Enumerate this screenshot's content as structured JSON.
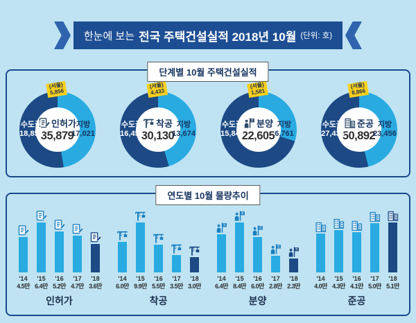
{
  "header": {
    "prefix": "한눈에 보는",
    "title": "전국 주택건설실적 2018년 10월",
    "unit": "(단위: 호)"
  },
  "section1": {
    "title": "단계별 10월 주택건설실적",
    "donuts": [
      {
        "name": "인허가",
        "total": "35,879",
        "capital_label": "수도권",
        "capital_value": "18,858",
        "province_label": "지방",
        "province_value": "17,021",
        "seoul_label": "(서울)",
        "seoul_value": "5,856",
        "province_pct": 47.4,
        "icon": "permit-document-icon"
      },
      {
        "name": "착공",
        "total": "30,130",
        "capital_label": "수도권",
        "capital_value": "16,456",
        "province_label": "지방",
        "province_value": "13,674",
        "seoul_label": "(서울)",
        "seoul_value": "4,433",
        "province_pct": 45.4,
        "icon": "crane-icon"
      },
      {
        "name": "분양",
        "total": "22,605",
        "capital_label": "수도권",
        "capital_value": "15,844",
        "province_label": "지방",
        "province_value": "6,761",
        "seoul_label": "(서울)",
        "seoul_value": "1,581",
        "province_pct": 29.9,
        "icon": "sales-flag-icon"
      },
      {
        "name": "준공",
        "total": "50,892",
        "capital_label": "수도권",
        "capital_value": "27,436",
        "province_label": "지방",
        "province_value": "23,456",
        "seoul_label": "(서울)",
        "seoul_value": "8,866",
        "province_pct": 46.1,
        "icon": "buildings-icon"
      }
    ]
  },
  "section2": {
    "title": "연도별 10월 물량추이",
    "groups": [
      {
        "name": "인허가",
        "icon": "permit-document-icon",
        "bars": [
          {
            "year": "'14",
            "label": "4.5만",
            "v": 4.5
          },
          {
            "year": "'15",
            "label": "6.4만",
            "v": 6.4
          },
          {
            "year": "'16",
            "label": "5.2만",
            "v": 5.2
          },
          {
            "year": "'17",
            "label": "4.7만",
            "v": 4.7
          },
          {
            "year": "'18",
            "label": "3.6만",
            "v": 3.6
          }
        ]
      },
      {
        "name": "착공",
        "icon": "crane-icon",
        "bars": [
          {
            "year": "'14",
            "label": "6.0만",
            "v": 6.0
          },
          {
            "year": "'15",
            "label": "9.9만",
            "v": 9.9
          },
          {
            "year": "'16",
            "label": "5.5만",
            "v": 5.5
          },
          {
            "year": "'17",
            "label": "3.5만",
            "v": 3.5
          },
          {
            "year": "'18",
            "label": "3.0만",
            "v": 3.0
          }
        ]
      },
      {
        "name": "분양",
        "icon": "sales-flag-icon",
        "bars": [
          {
            "year": "'14",
            "label": "6.4만",
            "v": 6.4
          },
          {
            "year": "'15",
            "label": "8.4만",
            "v": 8.4
          },
          {
            "year": "'16",
            "label": "6.0만",
            "v": 6.0
          },
          {
            "year": "'17",
            "label": "2.8만",
            "v": 2.8
          },
          {
            "year": "'18",
            "label": "2.3만",
            "v": 2.3
          }
        ]
      },
      {
        "name": "준공",
        "icon": "buildings-icon",
        "bars": [
          {
            "year": "'14",
            "label": "4.0만",
            "v": 4.0
          },
          {
            "year": "'15",
            "label": "4.3만",
            "v": 4.3
          },
          {
            "year": "'16",
            "label": "4.1만",
            "v": 4.1
          },
          {
            "year": "'17",
            "label": "5.0만",
            "v": 5.0
          },
          {
            "year": "'18",
            "label": "5.1만",
            "v": 5.1
          }
        ]
      }
    ]
  },
  "colors": {
    "page_bg": "#bfe3f2",
    "ribbon": "#1d4e94",
    "ribbon_cap": "#2f63ad",
    "panel_border": "#1b4a8a",
    "light_blue": "#29abe2",
    "dark_blue": "#1d4a85",
    "yellow": "#f8cf1c",
    "navy_text": "#16345f",
    "total_text": "#2e2e2e",
    "icon_blue": "#1b7fc0"
  },
  "chart_data": [
    {
      "type": "pie",
      "title": "인허가",
      "total": 35879,
      "labels": [
        "수도권",
        "지방"
      ],
      "values": [
        18858,
        17021
      ],
      "annotation": "(서울) 5,856",
      "legend_position": "on-slice"
    },
    {
      "type": "pie",
      "title": "착공",
      "total": 30130,
      "labels": [
        "수도권",
        "지방"
      ],
      "values": [
        16456,
        13674
      ],
      "annotation": "(서울) 4,433",
      "legend_position": "on-slice"
    },
    {
      "type": "pie",
      "title": "분양",
      "total": 22605,
      "labels": [
        "수도권",
        "지방"
      ],
      "values": [
        15844,
        6761
      ],
      "annotation": "(서울) 1,581",
      "legend_position": "on-slice"
    },
    {
      "type": "pie",
      "title": "준공",
      "total": 50892,
      "labels": [
        "수도권",
        "지방"
      ],
      "values": [
        27436,
        23456
      ],
      "annotation": "(서울) 8,866",
      "legend_position": "on-slice"
    },
    {
      "type": "bar",
      "title": "인허가 (연도별 10월 물량추이)",
      "categories": [
        "'14",
        "'15",
        "'16",
        "'17",
        "'18"
      ],
      "values": [
        4.5,
        6.4,
        5.2,
        4.7,
        3.6
      ],
      "unit": "만",
      "ylabel": "",
      "grid": false
    },
    {
      "type": "bar",
      "title": "착공 (연도별 10월 물량추이)",
      "categories": [
        "'14",
        "'15",
        "'16",
        "'17",
        "'18"
      ],
      "values": [
        6.0,
        9.9,
        5.5,
        3.5,
        3.0
      ],
      "unit": "만",
      "ylabel": "",
      "grid": false
    },
    {
      "type": "bar",
      "title": "분양 (연도별 10월 물량추이)",
      "categories": [
        "'14",
        "'15",
        "'16",
        "'17",
        "'18"
      ],
      "values": [
        6.4,
        8.4,
        6.0,
        2.8,
        2.3
      ],
      "unit": "만",
      "ylabel": "",
      "grid": false
    },
    {
      "type": "bar",
      "title": "준공 (연도별 10월 물량추이)",
      "categories": [
        "'14",
        "'15",
        "'16",
        "'17",
        "'18"
      ],
      "values": [
        4.0,
        4.3,
        4.1,
        5.0,
        5.1
      ],
      "unit": "만",
      "ylabel": "",
      "grid": false
    }
  ]
}
